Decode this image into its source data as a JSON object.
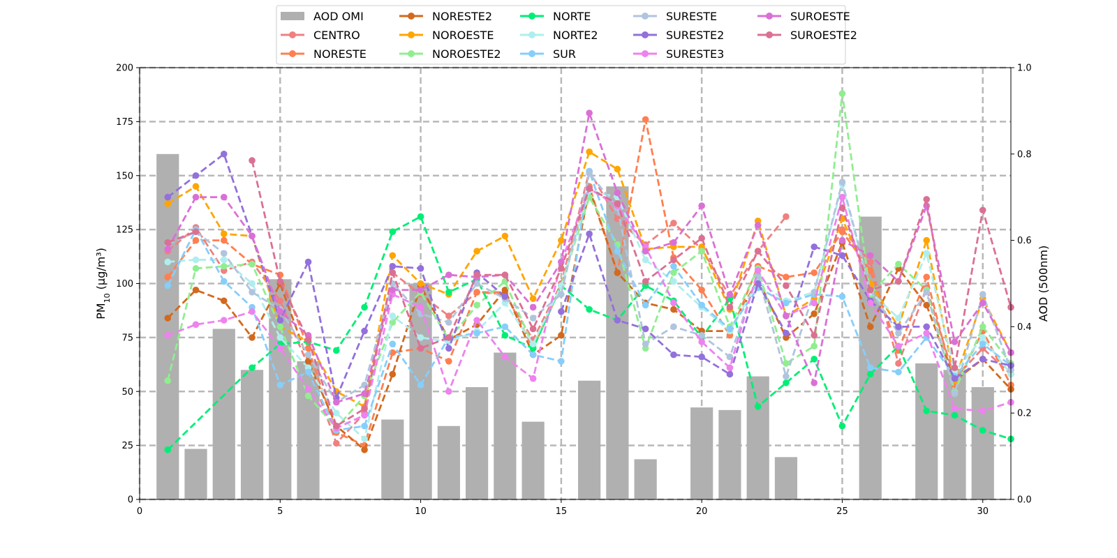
{
  "chart_data": {
    "type": "bar+line",
    "x_range": [
      0,
      31
    ],
    "x_ticks": [
      0,
      5,
      10,
      15,
      20,
      25,
      30
    ],
    "y_left": {
      "label_main": "PM",
      "label_sub": "10",
      "label_unit": " (μg/m³)",
      "range": [
        0,
        200
      ],
      "ticks": [
        0,
        25,
        50,
        75,
        100,
        125,
        150,
        175,
        200
      ]
    },
    "y_right": {
      "label": "AOD (500nm)",
      "range": [
        0,
        1.0
      ],
      "ticks": [
        0.0,
        0.2,
        0.4,
        0.6,
        0.8,
        1.0
      ]
    },
    "grid": true,
    "legend_position": "top-center",
    "bars": {
      "name": "AOD OMI",
      "color": "#b0b0b0",
      "x": [
        1,
        2,
        3,
        4,
        5,
        6,
        9,
        10,
        11,
        12,
        13,
        14,
        16,
        17,
        18,
        20,
        21,
        22,
        23,
        26,
        28,
        29,
        30
      ],
      "values": [
        0.8,
        0.117,
        0.395,
        0.3,
        0.51,
        0.32,
        0.185,
        0.5,
        0.17,
        0.26,
        0.34,
        0.18,
        0.275,
        0.725,
        0.093,
        0.213,
        0.207,
        0.285,
        0.098,
        0.655,
        0.315,
        0.3,
        0.26
      ]
    },
    "series": [
      {
        "name": "CENTRO",
        "color": "#f08080",
        "x": [
          1,
          2,
          3,
          4,
          5,
          6,
          7,
          8,
          9,
          10,
          11,
          12,
          13,
          14,
          15,
          16,
          17,
          18,
          19,
          20,
          21,
          22,
          23,
          24,
          25,
          26,
          27,
          28,
          29,
          30,
          31
        ],
        "values": [
          115,
          126,
          106,
          110,
          92,
          62,
          26,
          40,
          105,
          95,
          85,
          96,
          95,
          74,
          100,
          152,
          130,
          118,
          128,
          116,
          94,
          115,
          131,
          null,
          125,
          110,
          63,
          98,
          56,
          70,
          58
        ]
      },
      {
        "name": "NORESTE",
        "color": "#ff7f50",
        "x": [
          1,
          2,
          3,
          4,
          5,
          6,
          7,
          8,
          9,
          10,
          11,
          12,
          13,
          14,
          15,
          16,
          17,
          18,
          19,
          20,
          21,
          22,
          23,
          24,
          25,
          26,
          27,
          28,
          29,
          30,
          31
        ],
        "values": [
          103,
          120,
          120,
          109,
          104,
          70,
          31,
          25,
          68,
          70,
          64,
          96,
          96,
          70,
          99,
          145,
          105,
          176,
          112,
          97,
          76,
          108,
          103,
          105,
          124,
          106,
          69,
          103,
          52,
          78,
          53
        ]
      },
      {
        "name": "NORESTE2",
        "color": "#d2691e",
        "x": [
          1,
          2,
          3,
          4,
          5,
          6,
          7,
          8,
          9,
          10,
          11,
          12,
          13,
          14,
          15,
          16,
          17,
          18,
          19,
          20,
          21,
          22,
          23,
          24,
          25,
          26,
          27,
          28,
          29,
          30,
          31
        ],
        "values": [
          84,
          97,
          92,
          75,
          100,
          64,
          34,
          23,
          58,
          99,
          74,
          81,
          97,
          67,
          76,
          144,
          105,
          91,
          88,
          78,
          78,
          102,
          75,
          86,
          119,
          80,
          107,
          90,
          55,
          65,
          51
        ]
      },
      {
        "name": "NOROESTE",
        "color": "#ffa500",
        "x": [
          1,
          2,
          3,
          4,
          5,
          6,
          7,
          8,
          9,
          10,
          11,
          12,
          13,
          14,
          15,
          16,
          17,
          18,
          19,
          20,
          21,
          22,
          23,
          24,
          25,
          26,
          27,
          28,
          29,
          30,
          31
        ],
        "values": [
          137,
          145,
          123,
          122,
          80,
          73,
          50,
          43,
          113,
          100,
          95,
          115,
          122,
          93,
          120,
          161,
          153,
          116,
          117,
          117,
          88,
          129,
          85,
          93,
          130,
          100,
          80,
          120,
          55,
          93,
          68
        ]
      },
      {
        "name": "NOROESTE2",
        "color": "#90ee90",
        "x": [
          1,
          2,
          3,
          4,
          5,
          6,
          7,
          8,
          9,
          10,
          11,
          12,
          13,
          14,
          15,
          16,
          17,
          18,
          19,
          20,
          21,
          22,
          23,
          24,
          25,
          26,
          27,
          28,
          29,
          30,
          31
        ],
        "values": [
          55,
          107,
          108,
          109,
          80,
          48,
          33,
          48,
          82,
          96,
          74,
          90,
          101,
          71,
          99,
          140,
          118,
          70,
          105,
          115,
          80,
          107,
          63,
          71,
          188,
          95,
          109,
          97,
          50,
          80,
          63
        ]
      },
      {
        "name": "NORTE",
        "color": "#00ee76",
        "x": [
          1,
          4,
          5,
          6,
          7,
          8,
          9,
          10,
          11,
          12,
          13,
          14,
          15,
          16,
          17,
          18,
          19,
          20,
          21,
          22,
          23,
          24,
          25,
          26,
          27,
          28,
          29,
          30,
          31
        ],
        "values": [
          23,
          61,
          72,
          73,
          69,
          89,
          124,
          131,
          96,
          102,
          76,
          70,
          99,
          88,
          83,
          99,
          92,
          75,
          93,
          43,
          54,
          65,
          34,
          58,
          71,
          41,
          39,
          32,
          28
        ]
      },
      {
        "name": "NORTE2",
        "color": "#afeeee",
        "x": [
          1,
          2,
          3,
          4,
          5,
          6,
          7,
          8,
          9,
          10,
          11,
          12,
          13,
          14,
          15,
          16,
          17,
          18,
          19,
          20,
          21,
          22,
          23,
          24,
          25,
          26,
          27,
          28,
          29,
          30,
          31
        ],
        "values": [
          110,
          111,
          111,
          100,
          75,
          61,
          40,
          28,
          85,
          75,
          73,
          78,
          91,
          72,
          99,
          143,
          140,
          111,
          101,
          89,
          78,
          101,
          92,
          96,
          146,
          96,
          84,
          114,
          59,
          75,
          58
        ]
      },
      {
        "name": "SUR",
        "color": "#87cefa",
        "x": [
          1,
          2,
          3,
          4,
          5,
          6,
          7,
          8,
          9,
          10,
          11,
          12,
          13,
          14,
          15,
          16,
          17,
          18,
          19,
          20,
          21,
          22,
          23,
          24,
          25,
          26,
          27,
          28,
          29,
          30,
          31
        ],
        "values": [
          99,
          125,
          101,
          89,
          53,
          59,
          32,
          34,
          72,
          53,
          75,
          77,
          80,
          67,
          64,
          152,
          115,
          90,
          108,
          90,
          79,
          98,
          91,
          95,
          94,
          61,
          59,
          75,
          57,
          72,
          62
        ]
      },
      {
        "name": "SURESTE",
        "color": "#b0c4de",
        "x": [
          1,
          2,
          3,
          4,
          5,
          6,
          7,
          8,
          9,
          10,
          11,
          12,
          13,
          14,
          15,
          16,
          17,
          18,
          19,
          20,
          21,
          22,
          23,
          24,
          25,
          26,
          27,
          28,
          29,
          30,
          31
        ],
        "values": [
          118,
          124,
          114,
          96,
          88,
          67,
          45,
          53,
          100,
          86,
          82,
          100,
          93,
          84,
          95,
          151,
          135,
          72,
          80,
          76,
          66,
          104,
          57,
          96,
          147,
          97,
          77,
          96,
          49,
          95,
          60
        ]
      },
      {
        "name": "SURESTE2",
        "color": "#9370db",
        "x": [
          1,
          2,
          3,
          4,
          5,
          6,
          7,
          8,
          9,
          10,
          11,
          12,
          13,
          14,
          15,
          16,
          17,
          18,
          19,
          20,
          21,
          22,
          23,
          24,
          25,
          26,
          27,
          28,
          29,
          30,
          31
        ],
        "values": [
          140,
          150,
          160,
          122,
          83,
          110,
          47,
          78,
          108,
          107,
          70,
          105,
          94,
          null,
          87,
          123,
          83,
          79,
          67,
          66,
          58,
          100,
          77,
          117,
          113,
          92,
          80,
          80,
          56,
          65,
          62
        ]
      },
      {
        "name": "SURESTE3",
        "color": "#ee82ee",
        "x": [
          1,
          2,
          3,
          4,
          5,
          6,
          7,
          8,
          9,
          10,
          11,
          12,
          13,
          14,
          15,
          16,
          17,
          18,
          19,
          20,
          21,
          22,
          23,
          24,
          25,
          26,
          27,
          28,
          29,
          30,
          31
        ],
        "values": [
          76,
          81,
          83,
          87,
          70,
          51,
          33,
          39,
          95,
          89,
          50,
          83,
          66,
          56,
          110,
          144,
          136,
          117,
          91,
          73,
          61,
          106,
          85,
          91,
          140,
          91,
          71,
          77,
          42,
          41,
          45
        ]
      },
      {
        "name": "SUROESTE",
        "color": "#da70d6",
        "x": [
          1,
          2,
          3,
          4,
          5,
          6,
          7,
          8,
          9,
          10,
          11,
          12,
          13,
          14,
          15,
          16,
          17,
          18,
          19,
          20,
          21,
          22,
          23,
          24,
          25,
          26,
          27,
          28,
          29,
          30,
          31
        ],
        "values": [
          116,
          140,
          140,
          122,
          87,
          76,
          45,
          49,
          97,
          97,
          104,
          103,
          104,
          89,
          110,
          179,
          142,
          115,
          119,
          136,
          95,
          127,
          85,
          54,
          120,
          113,
          101,
          136,
          73,
          91,
          68
        ]
      },
      {
        "name": "SUROESTE2",
        "color": "#db7093",
        "x": [
          1,
          2,
          3,
          4,
          5,
          6,
          7,
          8,
          9,
          10,
          11,
          12,
          13,
          14,
          15,
          16,
          17,
          18,
          19,
          20,
          21,
          22,
          23,
          24,
          25,
          26,
          27,
          28,
          29,
          30,
          31
        ],
        "values": [
          119,
          124,
          null,
          157,
          101,
          74,
          34,
          42,
          105,
          70,
          75,
          104,
          104,
          79,
          107,
          144,
          137,
          101,
          111,
          121,
          89,
          115,
          99,
          76,
          135,
          97,
          101,
          139,
          61,
          134,
          89
        ]
      }
    ]
  }
}
